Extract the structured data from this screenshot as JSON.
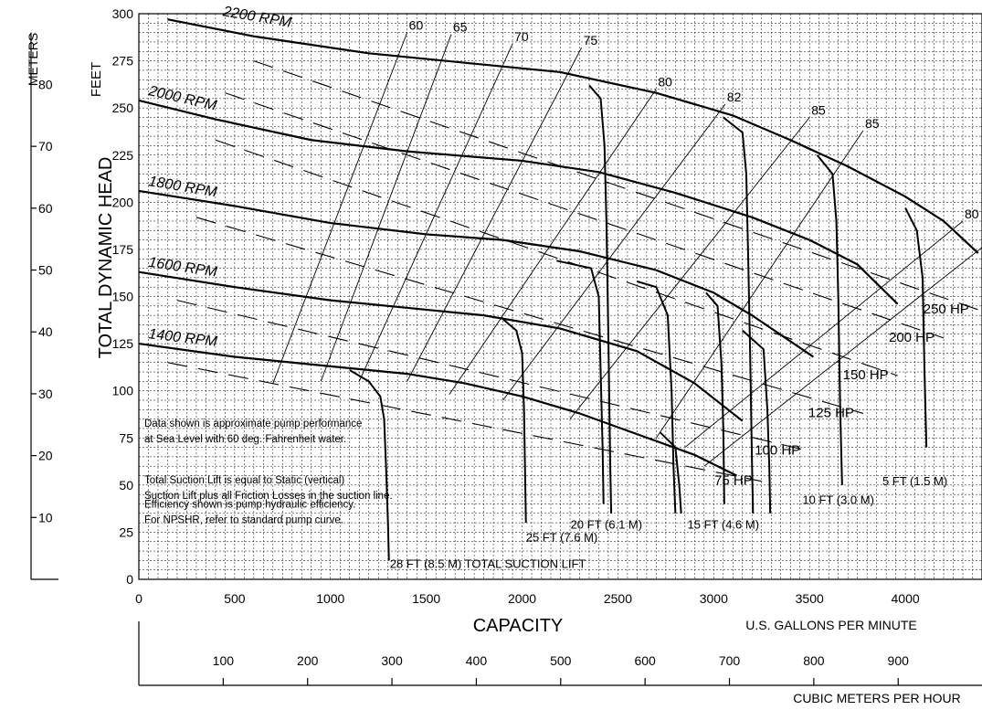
{
  "chart_data": {
    "type": "line",
    "ylabel": "TOTAL DYNAMIC HEAD",
    "y_unit_label": "FEET",
    "y2_unit_label": "METERS",
    "xlabel": "CAPACITY",
    "x_unit_label": "U.S. GALLONS PER MINUTE",
    "x2_unit_label": "CUBIC METERS PER HOUR",
    "xlim": [
      0,
      4400
    ],
    "ylim": [
      0,
      300
    ],
    "x_ticks": [
      0,
      500,
      1000,
      1500,
      2000,
      2500,
      3000,
      3500,
      4000
    ],
    "y_ticks": [
      0,
      25,
      50,
      75,
      100,
      125,
      150,
      175,
      200,
      225,
      250,
      275,
      300
    ],
    "meter_ticks": [
      10,
      20,
      30,
      40,
      50,
      60,
      70,
      80
    ],
    "cmh_ticks": [
      100,
      200,
      300,
      400,
      500,
      600,
      700,
      800,
      900
    ],
    "grid": true,
    "speed_curves": [
      {
        "name": "2200 RPM",
        "points": [
          [
            150,
            297
          ],
          [
            600,
            288
          ],
          [
            1200,
            279
          ],
          [
            1800,
            273
          ],
          [
            2200,
            269
          ],
          [
            2700,
            258
          ],
          [
            3100,
            246
          ],
          [
            3400,
            233
          ],
          [
            3700,
            219
          ],
          [
            4000,
            203
          ],
          [
            4200,
            190
          ],
          [
            4380,
            173
          ]
        ]
      },
      {
        "name": "2000 RPM",
        "points": [
          [
            0,
            254
          ],
          [
            400,
            244
          ],
          [
            900,
            233
          ],
          [
            1400,
            227
          ],
          [
            2000,
            222
          ],
          [
            2400,
            216
          ],
          [
            2800,
            205
          ],
          [
            3200,
            192
          ],
          [
            3500,
            180
          ],
          [
            3750,
            167
          ],
          [
            3960,
            146
          ]
        ]
      },
      {
        "name": "1800 RPM",
        "points": [
          [
            0,
            206
          ],
          [
            500,
            198
          ],
          [
            1000,
            189
          ],
          [
            1500,
            183
          ],
          [
            1900,
            180
          ],
          [
            2300,
            174
          ],
          [
            2700,
            164
          ],
          [
            3000,
            152
          ],
          [
            3200,
            140
          ],
          [
            3520,
            118
          ]
        ]
      },
      {
        "name": "1600 RPM",
        "points": [
          [
            0,
            163
          ],
          [
            500,
            155
          ],
          [
            1000,
            148
          ],
          [
            1500,
            143
          ],
          [
            1800,
            140
          ],
          [
            2200,
            133
          ],
          [
            2600,
            121
          ],
          [
            2900,
            104
          ],
          [
            3150,
            84
          ]
        ]
      },
      {
        "name": "1400 RPM",
        "points": [
          [
            0,
            125
          ],
          [
            500,
            118
          ],
          [
            1000,
            113
          ],
          [
            1400,
            109
          ],
          [
            1700,
            104
          ],
          [
            2000,
            97
          ],
          [
            2300,
            88
          ],
          [
            2600,
            77
          ],
          [
            2900,
            66
          ],
          [
            3120,
            55
          ]
        ]
      }
    ],
    "efficiency_lines": [
      {
        "name": "60",
        "points": [
          [
            700,
            104
          ],
          [
            1400,
            290
          ]
        ]
      },
      {
        "name": "65",
        "points": [
          [
            950,
            105
          ],
          [
            1630,
            289
          ]
        ]
      },
      {
        "name": "70",
        "points": [
          [
            1150,
            105
          ],
          [
            1950,
            284
          ]
        ]
      },
      {
        "name": "75",
        "points": [
          [
            1400,
            105
          ],
          [
            2310,
            282
          ]
        ]
      },
      {
        "name": "80",
        "points": [
          [
            1620,
            98
          ],
          [
            2700,
            260
          ]
        ]
      },
      {
        "name": "82",
        "points": [
          [
            1900,
            95
          ],
          [
            3060,
            252
          ]
        ]
      },
      {
        "name": "85",
        "points": [
          [
            2250,
            85
          ],
          [
            3500,
            245
          ]
        ]
      },
      {
        "name": "85",
        "points": [
          [
            2700,
            75
          ],
          [
            3780,
            238
          ]
        ]
      },
      {
        "name": "80",
        "points": [
          [
            2850,
            70
          ],
          [
            4300,
            190
          ]
        ]
      },
      {
        "name": "75",
        "points": [
          [
            2950,
            60
          ],
          [
            4400,
            176
          ]
        ]
      }
    ],
    "horsepower_lines": [
      {
        "name": "250 HP",
        "points": [
          [
            600,
            275
          ],
          [
            4380,
            143
          ]
        ]
      },
      {
        "name": "200 HP",
        "points": [
          [
            450,
            258
          ],
          [
            4200,
            128
          ]
        ]
      },
      {
        "name": "150 HP",
        "points": [
          [
            400,
            233
          ],
          [
            3960,
            108
          ]
        ]
      },
      {
        "name": "125 HP",
        "points": [
          [
            300,
            192
          ],
          [
            3780,
            88
          ]
        ]
      },
      {
        "name": "100 HP",
        "points": [
          [
            200,
            148
          ],
          [
            3500,
            68
          ]
        ]
      },
      {
        "name": "75 HP",
        "points": [
          [
            150,
            115
          ],
          [
            3250,
            52
          ]
        ]
      }
    ],
    "suction_lift_curves": [
      {
        "name": "28 FT (8.5 M) TOTAL SUCTION LIFT",
        "points": [
          [
            1100,
            111
          ],
          [
            1200,
            105
          ],
          [
            1260,
            97
          ],
          [
            1280,
            85
          ],
          [
            1290,
            60
          ],
          [
            1300,
            30
          ],
          [
            1305,
            10
          ]
        ]
      },
      {
        "name": "25 FT (7.6 M)",
        "points": [
          [
            1900,
            138
          ],
          [
            1970,
            132
          ],
          [
            2000,
            120
          ],
          [
            2010,
            90
          ],
          [
            2015,
            60
          ],
          [
            2020,
            30
          ]
        ]
      },
      {
        "name": "20 FT (6.1 M)",
        "points": [
          [
            2180,
            169
          ],
          [
            2360,
            165
          ],
          [
            2400,
            150
          ],
          [
            2410,
            110
          ],
          [
            2420,
            70
          ],
          [
            2425,
            40
          ]
        ]
      },
      {
        "name": "20 FT (6.1 M)",
        "points": [
          [
            2350,
            262
          ],
          [
            2410,
            255
          ],
          [
            2430,
            230
          ],
          [
            2440,
            190
          ],
          [
            2450,
            130
          ],
          [
            2460,
            60
          ],
          [
            2465,
            35
          ]
        ]
      },
      {
        "name": "15 FT (4.6 M)",
        "points": [
          [
            2600,
            158
          ],
          [
            2700,
            155
          ],
          [
            2760,
            140
          ],
          [
            2780,
            100
          ],
          [
            2790,
            60
          ],
          [
            2800,
            35
          ]
        ]
      },
      {
        "name": "15 FT (4.6 M)",
        "points": [
          [
            2720,
            78
          ],
          [
            2800,
            70
          ],
          [
            2820,
            50
          ],
          [
            2830,
            35
          ]
        ]
      },
      {
        "name": "15 FT (4.6 M)",
        "points": [
          [
            2960,
            152
          ],
          [
            3020,
            145
          ],
          [
            3040,
            115
          ],
          [
            3050,
            80
          ],
          [
            3055,
            40
          ]
        ]
      },
      {
        "name": "10 FT (3.0 M)",
        "points": [
          [
            3150,
            132
          ],
          [
            3260,
            122
          ],
          [
            3280,
            90
          ],
          [
            3290,
            60
          ],
          [
            3295,
            35
          ]
        ]
      },
      {
        "name": "10 FT (3.0 M)",
        "points": [
          [
            3050,
            245
          ],
          [
            3150,
            237
          ],
          [
            3170,
            215
          ],
          [
            3180,
            170
          ],
          [
            3190,
            120
          ],
          [
            3200,
            60
          ],
          [
            3205,
            35
          ]
        ]
      },
      {
        "name": "10 FT (3.0 M)",
        "points": [
          [
            3540,
            225
          ],
          [
            3620,
            215
          ],
          [
            3640,
            190
          ],
          [
            3650,
            150
          ],
          [
            3660,
            90
          ],
          [
            3670,
            50
          ]
        ]
      },
      {
        "name": "5 FT (1.5 M)",
        "points": [
          [
            4000,
            197
          ],
          [
            4060,
            185
          ],
          [
            4090,
            160
          ],
          [
            4100,
            110
          ],
          [
            4110,
            70
          ]
        ]
      }
    ],
    "annotations": [
      "Data shown is approximate pump performance",
      "at Sea Level with 60 deg. Fahrenheit water.",
      "Total Suction Lift is equal to Static (vertical)",
      "Suction Lift plus all Friction Losses in the suction line.",
      "Efficiency shown is pump hydraulic efficiency.",
      "For NPSHR, refer to standard pump curve."
    ]
  }
}
